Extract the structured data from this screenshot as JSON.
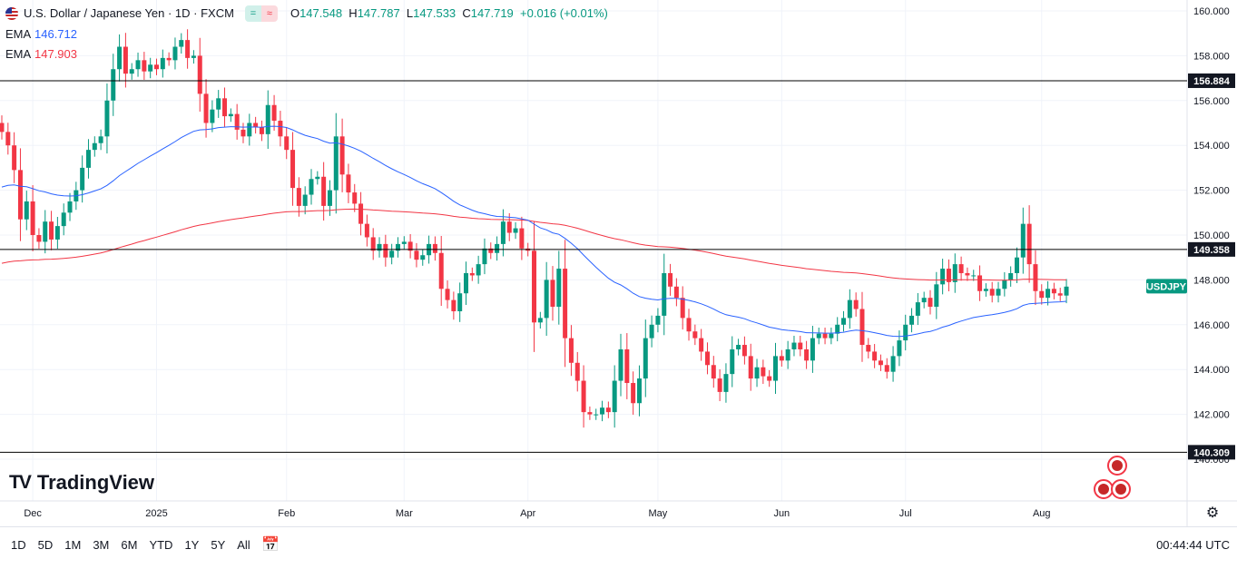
{
  "header": {
    "symbol": "U.S. Dollar / Japanese Yen · 1D · FXCM",
    "pill_a": "=",
    "pill_b": "≈",
    "o_label": "O",
    "o": "147.548",
    "h_label": "H",
    "h": "147.787",
    "l_label": "L",
    "l": "147.533",
    "c_label": "C",
    "c": "147.719",
    "change": "+0.016 (+0.01%)"
  },
  "ema_fast": {
    "label": "EMA",
    "value": "146.712",
    "color": "#2962ff"
  },
  "ema_slow": {
    "label": "EMA",
    "value": "147.903",
    "color": "#f23645"
  },
  "logo": {
    "mark": "TV",
    "text": "TradingView"
  },
  "bottom": {
    "ranges": [
      "1D",
      "5D",
      "1M",
      "3M",
      "6M",
      "YTD",
      "1Y",
      "5Y",
      "All"
    ],
    "clock": "00:44:44 UTC"
  },
  "icons": {
    "calendar": "calendar-icon",
    "settings": "gear-icon",
    "flag": "us-flag-icon"
  },
  "chart_data": {
    "type": "candlestick",
    "title": "U.S. Dollar / Japanese Yen · 1D · FXCM",
    "ylim": [
      139.5,
      160.5
    ],
    "y_ticks": [
      140,
      142,
      144,
      146,
      148,
      150,
      152,
      154,
      156,
      158,
      160
    ],
    "y_tick_labels": [
      "140.000",
      "142.000",
      "144.000",
      "146.000",
      "148.000",
      "150.000",
      "152.000",
      "154.000",
      "156.000",
      "158.000",
      "160.000"
    ],
    "x_labels": [
      {
        "label": "Dec",
        "index": 5
      },
      {
        "label": "2025",
        "index": 25
      },
      {
        "label": "Feb",
        "index": 46
      },
      {
        "label": "Mar",
        "index": 65
      },
      {
        "label": "Apr",
        "index": 85
      },
      {
        "label": "May",
        "index": 106
      },
      {
        "label": "Jun",
        "index": 126
      },
      {
        "label": "Jul",
        "index": 146
      },
      {
        "label": "Aug",
        "index": 168
      }
    ],
    "horizontal_levels": [
      {
        "value": 156.884,
        "label": "156.884"
      },
      {
        "value": 149.358,
        "label": "149.358"
      },
      {
        "value": 140.309,
        "label": "140.309"
      }
    ],
    "last_price_label": "USDJPY",
    "last_price": 147.719,
    "closes": [
      154.6,
      154.0,
      152.9,
      150.7,
      151.5,
      150.0,
      149.7,
      150.6,
      149.8,
      150.4,
      151.0,
      151.5,
      152.0,
      153.0,
      153.8,
      154.1,
      154.4,
      156.0,
      157.4,
      158.4,
      157.2,
      157.4,
      157.8,
      157.3,
      157.6,
      157.4,
      157.9,
      157.8,
      158.4,
      158.7,
      157.9,
      158.0,
      156.3,
      155.0,
      155.6,
      156.1,
      155.3,
      155.4,
      154.7,
      154.4,
      155.0,
      154.8,
      154.5,
      155.8,
      155.1,
      154.4,
      153.8,
      152.1,
      151.3,
      151.8,
      152.5,
      152.6,
      151.3,
      152.0,
      154.4,
      152.7,
      151.9,
      151.4,
      150.5,
      149.9,
      149.3,
      149.6,
      149.0,
      149.3,
      149.6,
      149.7,
      149.3,
      148.9,
      149.1,
      149.6,
      149.2,
      147.6,
      147.1,
      146.6,
      147.4,
      148.3,
      148.2,
      148.7,
      149.4,
      149.2,
      149.6,
      150.6,
      150.1,
      150.3,
      149.4,
      149.3,
      146.1,
      146.3,
      148.0,
      146.8,
      148.5,
      145.4,
      144.3,
      143.5,
      142.1,
      142.0,
      142.0,
      142.3,
      142.1,
      143.5,
      144.9,
      143.4,
      142.5,
      143.6,
      145.4,
      146.0,
      146.4,
      148.3,
      147.7,
      147.2,
      146.3,
      145.7,
      145.4,
      144.8,
      144.2,
      143.6,
      143.0,
      143.8,
      144.9,
      145.1,
      144.6,
      143.6,
      144.1,
      143.7,
      143.5,
      144.6,
      144.4,
      144.9,
      145.2,
      144.9,
      144.4,
      145.4,
      145.6,
      145.4,
      145.6,
      146.0,
      146.3,
      147.1,
      146.7,
      145.1,
      144.8,
      144.4,
      144.2,
      143.9,
      144.6,
      145.3,
      146.0,
      146.4,
      147.0,
      147.2,
      146.8,
      147.8,
      148.5,
      147.9,
      148.7,
      148.3,
      148.2,
      148.2,
      147.5,
      147.6,
      147.3,
      147.6,
      148.0,
      148.3,
      149.0,
      150.5,
      148.7,
      147.5,
      147.2,
      147.6,
      147.4,
      147.3,
      147.7
    ]
  }
}
